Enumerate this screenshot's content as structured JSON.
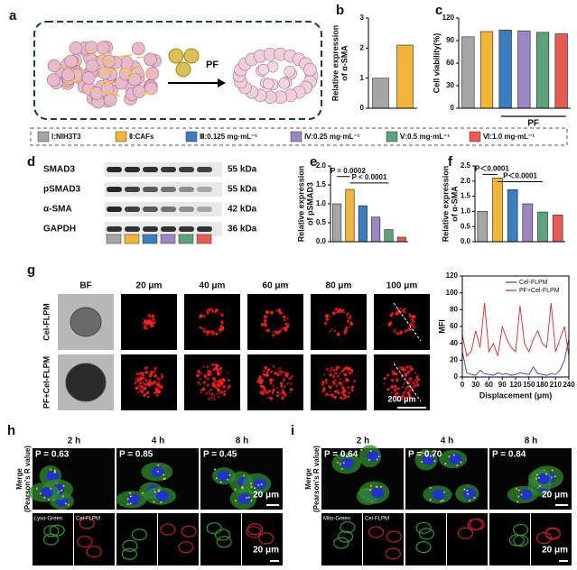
{
  "panel_letters": [
    "a",
    "b",
    "c",
    "d",
    "e",
    "f",
    "g",
    "h",
    "i"
  ],
  "panel_a": {
    "label": "PF"
  },
  "legend": [
    "Ⅰ:NIH3T3",
    "Ⅱ:CAFs",
    "Ⅲ:0.125 mg·mL⁻¹",
    "Ⅳ:0.25 mg·mL⁻¹",
    "Ⅴ:0.5 mg·mL⁻¹",
    "Ⅵ:1.0 mg·mL⁻¹"
  ],
  "blot": {
    "rows": [
      {
        "name": "SMAD3",
        "size": "55 kDa"
      },
      {
        "name": "pSMAD3",
        "size": "55 kDa"
      },
      {
        "name": "α-SMA",
        "size": "42 kDa"
      },
      {
        "name": "GAPDH",
        "size": "36 kDa"
      }
    ]
  },
  "imaging_g": {
    "columns": [
      "BF",
      "20 μm",
      "40 μm",
      "60 μm",
      "80 μm",
      "100 μm"
    ],
    "rows": [
      "Cel-FLPM",
      "PF+Cel-FLPM"
    ],
    "scale_bar": "200 μm"
  },
  "panel_h": {
    "times": [
      "2 h",
      "4 h",
      "8 h"
    ],
    "pearson": [
      "P = 0.63",
      "P = 0.85",
      "P = 0.45"
    ],
    "row_label": [
      "Merge",
      "(Pearson's R value)"
    ],
    "scale_bars": [
      "20 μm",
      "20 μm"
    ],
    "channels": [
      "Lyso-Green",
      "Cel-FLPM"
    ]
  },
  "panel_i": {
    "times": [
      "2 h",
      "4 h",
      "8 h"
    ],
    "pearson": [
      "P = 0.64",
      "P = 0.70",
      "P = 0.84"
    ],
    "row_label": [
      "Merge",
      "(Pearson's R value)"
    ],
    "scale_bars": [
      "20 μm",
      "20 μm"
    ],
    "channels": [
      "Mito-Green",
      "Cel-FLPM"
    ]
  },
  "chart_data": [
    {
      "type": "bar",
      "y_label": [
        "Relative expression",
        "of α-SMA"
      ],
      "categories": [
        null,
        null
      ],
      "values": [
        1.0,
        2.1
      ],
      "colors": [
        "#a6a6a6",
        "#f2b636"
      ],
      "ylim": [
        0,
        3
      ],
      "yticks": [
        0,
        1,
        2,
        3
      ]
    },
    {
      "type": "bar",
      "y_label": [
        "Cell viability(%)"
      ],
      "categories": [
        null,
        null,
        null,
        null,
        null,
        null
      ],
      "values": [
        95,
        102,
        104,
        103,
        101,
        99
      ],
      "colors": [
        "#a6a6a6",
        "#f2b636",
        "#3a7ebf",
        "#9b86c6",
        "#5ba37c",
        "#e65c55"
      ],
      "ylim": [
        0,
        120
      ],
      "yticks": [
        0,
        30,
        60,
        90,
        120
      ],
      "annotations": [
        "PF"
      ]
    },
    {
      "type": "bar",
      "y_label": [
        "Relative expression",
        "of pSMAD3"
      ],
      "categories": [
        null,
        null,
        null,
        null,
        null,
        null
      ],
      "values": [
        1.0,
        1.38,
        0.95,
        0.65,
        0.32,
        0.12
      ],
      "colors": [
        "#a6a6a6",
        "#f2b636",
        "#3a7ebf",
        "#9b86c6",
        "#5ba37c",
        "#e65c55"
      ],
      "ylim": [
        0,
        2
      ],
      "yticks": [
        {
          "value": 0,
          "label": "0.0"
        },
        0.5,
        {
          "value": 1,
          "label": "1.0"
        },
        1.5,
        {
          "value": 2,
          "label": "2.0"
        }
      ],
      "annotations": [
        "P = 0.0002",
        "P < 0.0001"
      ]
    },
    {
      "type": "bar",
      "y_label": [
        "Relative expression",
        "of α-SMA"
      ],
      "categories": [
        null,
        null,
        null,
        null,
        null,
        null
      ],
      "values": [
        1.0,
        2.1,
        1.72,
        1.25,
        0.98,
        0.88
      ],
      "colors": [
        "#a6a6a6",
        "#f2b636",
        "#3a7ebf",
        "#9b86c6",
        "#5ba37c",
        "#e65c55"
      ],
      "ylim": [
        0,
        2.5
      ],
      "yticks": [
        {
          "value": 0,
          "label": "0.0"
        },
        0.5,
        {
          "value": 1,
          "label": "1.0"
        },
        1.5,
        {
          "value": 2,
          "label": "2.0"
        },
        2.5
      ],
      "annotations": [
        "P＜0.0001",
        "P＜0.0001"
      ]
    },
    {
      "type": "line",
      "y_label": "MFI",
      "x_label": "Displacement (μm)",
      "x": [
        0,
        10,
        20,
        30,
        40,
        50,
        60,
        70,
        80,
        90,
        100,
        110,
        120,
        130,
        140,
        150,
        160,
        170,
        180,
        190,
        200,
        210,
        220,
        230,
        240
      ],
      "series": [
        {
          "name": "Cel-FLPM",
          "color": "#2a3fd6",
          "values": [
            30,
            5,
            3,
            2,
            8,
            4,
            3,
            2,
            5,
            3,
            4,
            2,
            3,
            5,
            4,
            3,
            12,
            4,
            3,
            2,
            4,
            3,
            8,
            20,
            45
          ]
        },
        {
          "name": "PF+Cel-FLPM",
          "color": "#e0262a",
          "values": [
            50,
            25,
            30,
            55,
            35,
            88,
            30,
            40,
            25,
            60,
            45,
            35,
            30,
            85,
            40,
            30,
            45,
            55,
            40,
            35,
            88,
            30,
            45,
            60,
            25
          ]
        }
      ],
      "xlim": [
        0,
        240
      ],
      "xticks": [
        0,
        30,
        60,
        90,
        120,
        150,
        180,
        210,
        240
      ],
      "ylim": [
        0,
        120
      ],
      "yticks": [
        0,
        20,
        40,
        60,
        80,
        100,
        120
      ]
    }
  ]
}
